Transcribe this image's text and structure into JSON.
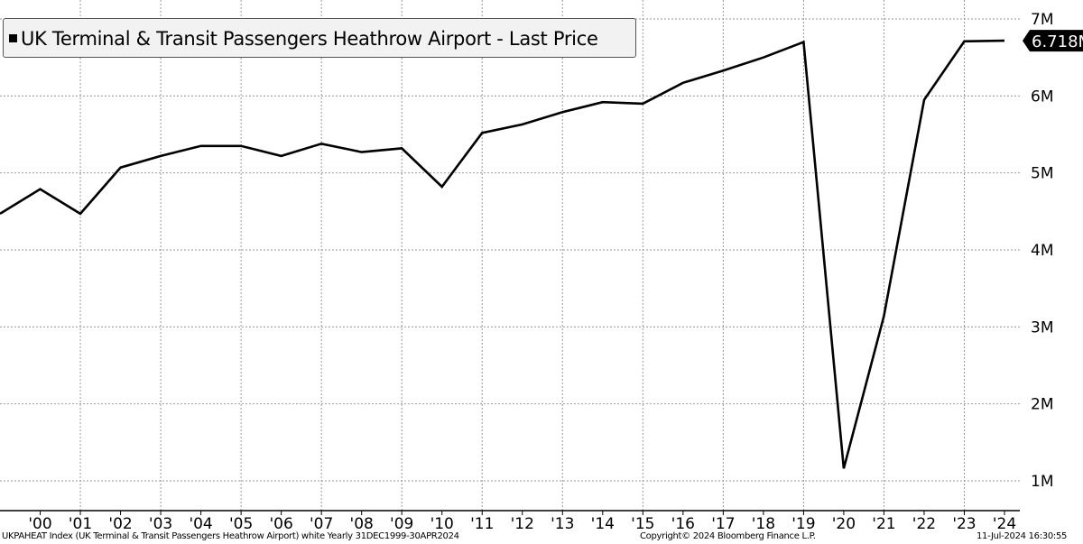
{
  "chart_data": {
    "type": "line",
    "title": "",
    "legend": {
      "label": "UK Terminal & Transit Passengers Heathrow Airport - Last Price",
      "placement": "top-left"
    },
    "x": [
      1999,
      2000,
      2001,
      2002,
      2003,
      2004,
      2005,
      2006,
      2007,
      2008,
      2009,
      2010,
      2011,
      2012,
      2013,
      2014,
      2015,
      2016,
      2017,
      2018,
      2019,
      2020,
      2021,
      2022,
      2023,
      2024
    ],
    "series": [
      {
        "name": "UK Terminal & Transit Passengers Heathrow Airport - Last Price",
        "values": [
          4.47,
          4.79,
          4.47,
          5.07,
          5.22,
          5.35,
          5.35,
          5.22,
          5.38,
          5.27,
          5.32,
          4.82,
          5.52,
          5.63,
          5.79,
          5.92,
          5.9,
          6.17,
          6.33,
          6.5,
          6.7,
          1.16,
          3.14,
          5.95,
          6.71,
          6.718
        ],
        "color": "#000000"
      }
    ],
    "x_tick_labels": [
      "'00",
      "'01",
      "'02",
      "'03",
      "'04",
      "'05",
      "'06",
      "'07",
      "'08",
      "'09",
      "'10",
      "'11",
      "'12",
      "'13",
      "'14",
      "'15",
      "'16",
      "'17",
      "'18",
      "'19",
      "'20",
      "'21",
      "'22",
      "'23",
      "'24"
    ],
    "y_ticks": [
      1,
      2,
      3,
      4,
      5,
      6,
      7
    ],
    "y_tick_labels": [
      "1M",
      "2M",
      "3M",
      "4M",
      "5M",
      "6M",
      "7M"
    ],
    "y_unit": "M",
    "ylim": [
      0.8,
      7
    ],
    "y_axis_side": "right",
    "grid": true,
    "last_value_label": "6.718M"
  },
  "footer": {
    "left": "UKPAHEAT Index (UK Terminal & Transit Passengers Heathrow Airport) white  Yearly 31DEC1999-30APR2024",
    "center": "Copyright© 2024 Bloomberg Finance L.P.",
    "right": "11-Jul-2024 16:30:55"
  }
}
